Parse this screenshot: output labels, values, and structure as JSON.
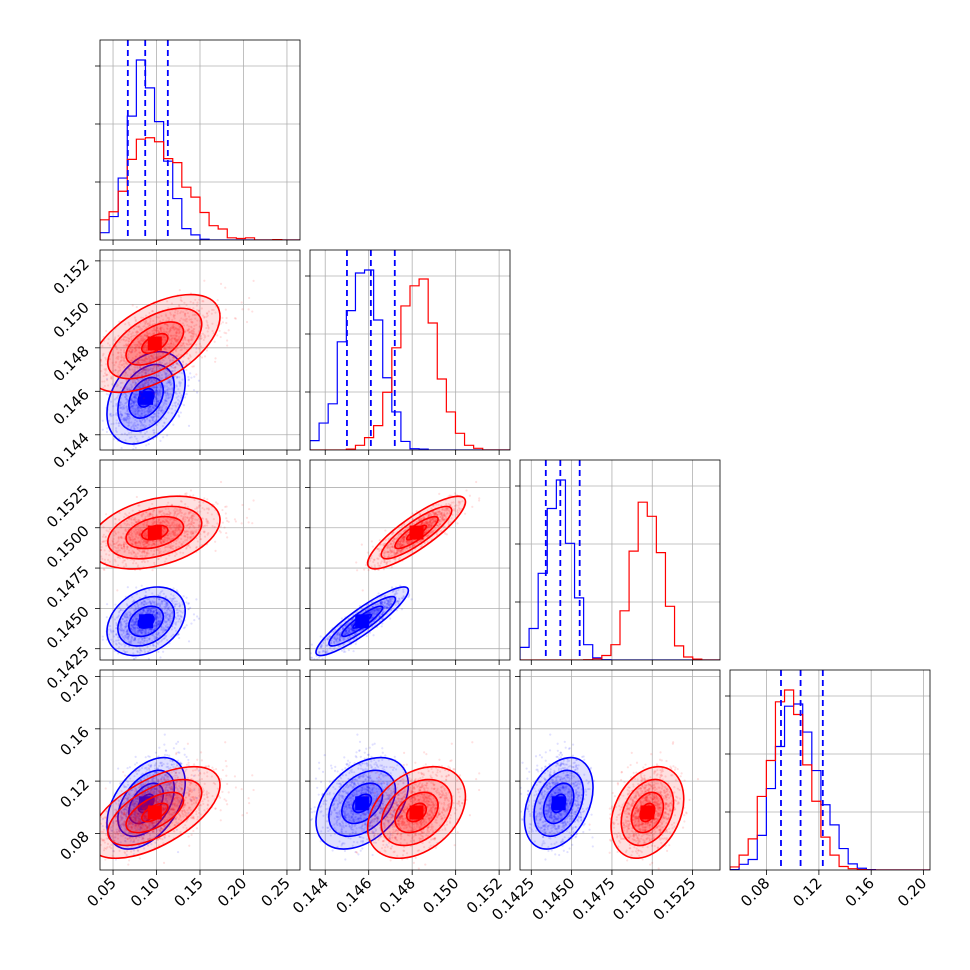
{
  "chart_data": {
    "type": "corner",
    "title": "",
    "parameters": [
      "",
      "",
      "",
      ""
    ],
    "grid": true,
    "legend": "none",
    "colors": {
      "series_a": "#0000ff",
      "series_b": "#ff0000"
    },
    "ranges": [
      [
        0.035,
        0.265
      ],
      [
        0.1433,
        0.1525
      ],
      [
        0.1418,
        0.1542
      ],
      [
        0.052,
        0.205
      ]
    ],
    "x_ticks": [
      [
        0.05,
        0.1,
        0.15,
        0.2,
        0.25
      ],
      [
        0.144,
        0.146,
        0.148,
        0.15,
        0.152
      ],
      [
        0.1425,
        0.145,
        0.1475,
        0.15,
        0.1525
      ],
      [
        0.08,
        0.12,
        0.16,
        0.2
      ]
    ],
    "x_tick_labels": [
      [
        "0.05",
        "0.10",
        "0.15",
        "0.20",
        "0.25"
      ],
      [
        "0.144",
        "0.146",
        "0.148",
        "0.150",
        "0.152"
      ],
      [
        "0.1425",
        "0.1450",
        "0.1475",
        "0.1500",
        "0.1525"
      ],
      [
        "0.08",
        "0.12",
        "0.16",
        "0.20"
      ]
    ],
    "y_ticks": [
      [],
      [
        0.144,
        0.146,
        0.148,
        0.15,
        0.152
      ],
      [
        0.1425,
        0.145,
        0.1475,
        0.15,
        0.1525
      ],
      [
        0.08,
        0.12,
        0.16,
        0.2
      ]
    ],
    "y_tick_labels": [
      [],
      [
        "0.144",
        "0.146",
        "0.148",
        "0.150",
        "0.152"
      ],
      [
        "0.1425",
        "0.1450",
        "0.1475",
        "0.1500",
        "0.1525"
      ],
      [
        "0.08",
        "0.12",
        "0.16",
        "0.20"
      ]
    ],
    "series": [
      {
        "color": "#0000ff",
        "mean": [
          0.088,
          0.1457,
          0.1442,
          0.103
        ],
        "std": [
          0.018,
          0.00085,
          0.00085,
          0.014
        ],
        "corr": [
          [
            1,
            0.35,
            0.3,
            0.45
          ],
          [
            0.35,
            1,
            0.9,
            0.4
          ],
          [
            0.3,
            0.9,
            1,
            0.35
          ],
          [
            0.45,
            0.4,
            0.35,
            1
          ]
        ],
        "quantiles": [
          [
            0.067,
            0.087,
            0.113
          ],
          [
            0.145,
            0.1461,
            0.1472
          ],
          [
            0.1434,
            0.1443,
            0.1455
          ],
          [
            0.091,
            0.106,
            0.123
          ]
        ]
      },
      {
        "color": "#ff0000",
        "mean": [
          0.098,
          0.1482,
          0.1497,
          0.096
        ],
        "std": [
          0.03,
          0.0009,
          0.0009,
          0.014
        ],
        "corr": [
          [
            1,
            0.55,
            0.35,
            0.6
          ],
          [
            0.55,
            1,
            0.85,
            0.35
          ],
          [
            0.35,
            0.85,
            1,
            0.3
          ],
          [
            0.6,
            0.35,
            0.3,
            1
          ]
        ],
        "quantiles": [
          [],
          [],
          [],
          []
        ]
      }
    ]
  }
}
